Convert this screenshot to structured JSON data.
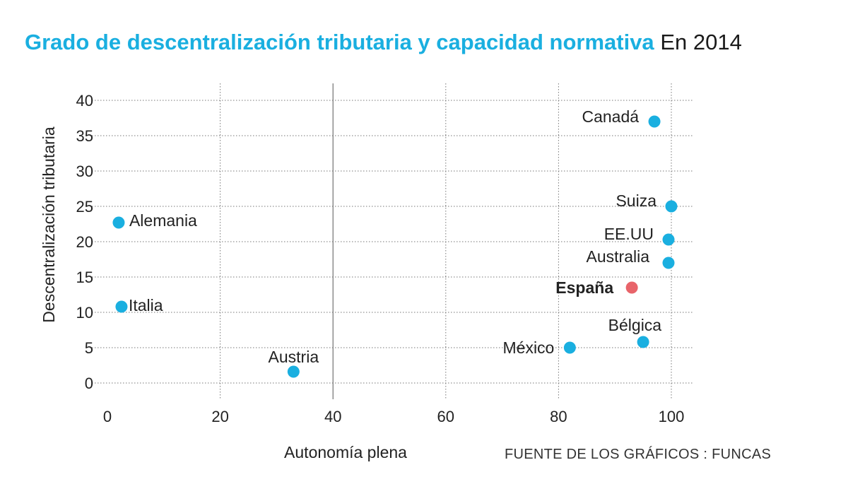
{
  "header": {
    "title": "Grado de descentralización tributaria y capacidad normativa",
    "subtitle": "En 2014"
  },
  "footer": {
    "source": "FUENTE DE LOS GRÁFICOS : FUNCAS"
  },
  "colors": {
    "accent": "#1aafe0",
    "highlight": "#e8646a",
    "text": "#1a1a1a"
  },
  "chart_data": {
    "type": "scatter",
    "title": "Grado de descentralización tributaria y capacidad normativa",
    "subtitle": "En 2014",
    "xlabel": "Autonomía plena",
    "ylabel": "Descentralización tributaria",
    "xlim": [
      0,
      100
    ],
    "ylim": [
      0,
      40
    ],
    "xticks": [
      0,
      20,
      40,
      60,
      80,
      100
    ],
    "yticks": [
      0,
      5,
      10,
      15,
      20,
      25,
      30,
      35,
      40
    ],
    "grid": true,
    "points": [
      {
        "label": "Canadá",
        "x": 97,
        "y": 37
      },
      {
        "label": "Suiza",
        "x": 100,
        "y": 25
      },
      {
        "label": "Alemania",
        "x": 2,
        "y": 22.7
      },
      {
        "label": "EE.UU",
        "x": 99.5,
        "y": 20.3
      },
      {
        "label": "Australia",
        "x": 99.5,
        "y": 17
      },
      {
        "label": "España",
        "x": 93,
        "y": 13.5,
        "highlight": true
      },
      {
        "label": "Italia",
        "x": 2.5,
        "y": 10.8
      },
      {
        "label": "Bélgica",
        "x": 95,
        "y": 5.8
      },
      {
        "label": "México",
        "x": 82,
        "y": 5
      },
      {
        "label": "Austria",
        "x": 33,
        "y": 1.6
      }
    ]
  }
}
